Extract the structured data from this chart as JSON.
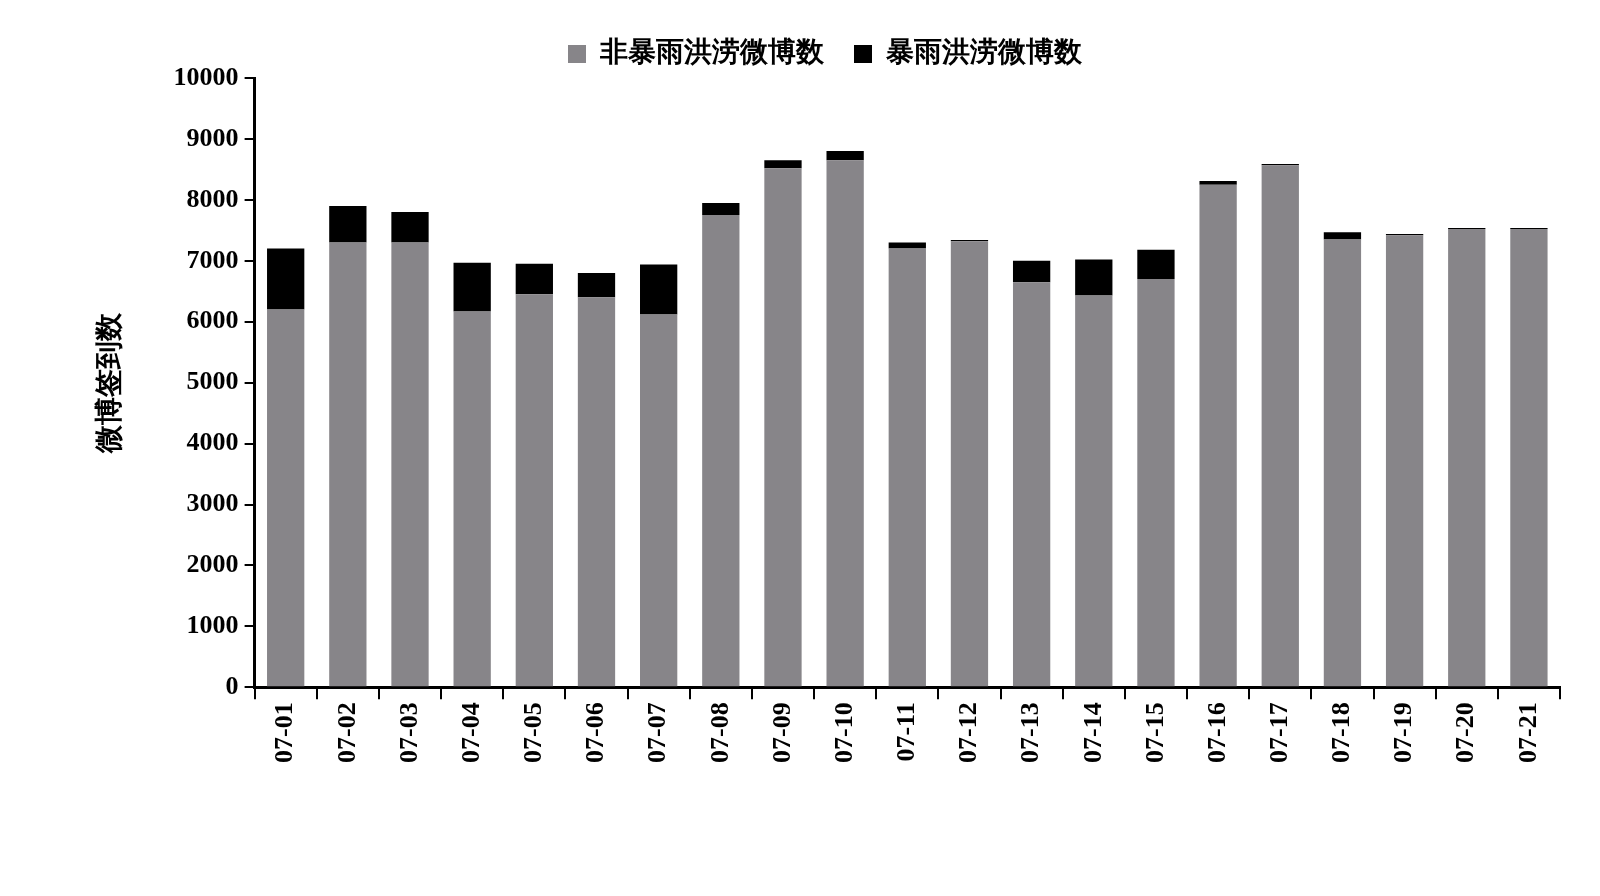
{
  "chart_data": {
    "type": "bar",
    "stacked": true,
    "ylabel": "微博签到数",
    "categories": [
      "07-01",
      "07-02",
      "07-03",
      "07-04",
      "07-05",
      "07-06",
      "07-07",
      "07-08",
      "07-09",
      "07-10",
      "07-11",
      "07-12",
      "07-13",
      "07-14",
      "07-15",
      "07-16",
      "07-17",
      "07-18",
      "07-19",
      "07-20",
      "07-21"
    ],
    "series": [
      {
        "name": "非暴雨洪涝微博数",
        "color": "#878589",
        "values": [
          6200,
          7300,
          7300,
          6170,
          6450,
          6400,
          6120,
          7750,
          8520,
          8650,
          7200,
          7320,
          6650,
          6430,
          6700,
          8250,
          8570,
          7350,
          7420,
          7520,
          7520
        ]
      },
      {
        "name": "暴雨洪涝微博数",
        "color": "#000000",
        "values": [
          1000,
          600,
          500,
          800,
          500,
          400,
          820,
          200,
          130,
          150,
          100,
          20,
          350,
          590,
          480,
          60,
          20,
          120,
          20,
          20,
          20
        ]
      }
    ],
    "ylim": [
      0,
      10000
    ],
    "yticks": [
      0,
      1000,
      2000,
      3000,
      4000,
      5000,
      6000,
      7000,
      8000,
      9000,
      10000
    ],
    "grid": false,
    "legend": "top"
  }
}
